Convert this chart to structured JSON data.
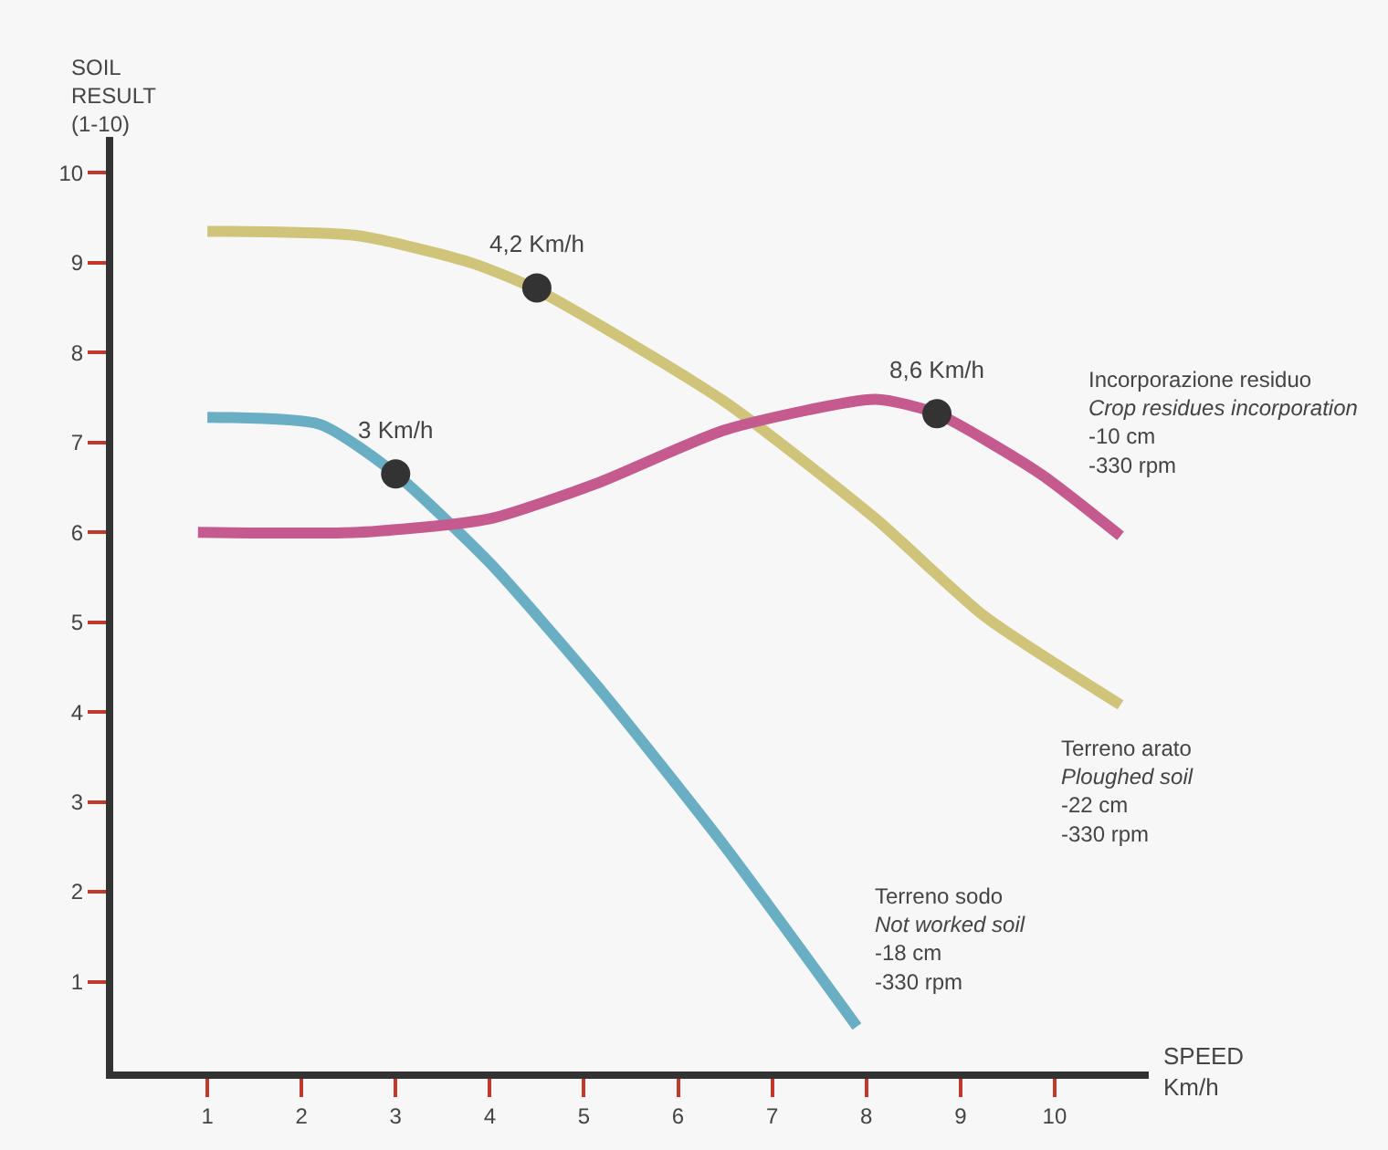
{
  "chart_data": {
    "type": "line",
    "xlabel": "SPEED\nKm/h",
    "ylabel": "SOIL\nRESULT\n(1-10)",
    "xlim": [
      0,
      11
    ],
    "ylim": [
      0,
      10.4
    ],
    "xticks": [
      1,
      2,
      3,
      4,
      5,
      6,
      7,
      8,
      9,
      10
    ],
    "yticks": [
      1,
      2,
      3,
      4,
      5,
      6,
      7,
      8,
      9,
      10
    ],
    "grid": false,
    "legend": false,
    "series": [
      {
        "name": "Terreno arato\nPloughed soil\n-22 cm\n-330 rpm",
        "color": "#cfc47a",
        "marker": "none",
        "x": [
          1,
          2.6,
          3.8,
          4.5,
          6.5,
          8.1,
          9.25,
          10.7
        ],
        "values": [
          9.35,
          9.3,
          9.0,
          8.7,
          7.45,
          6.15,
          5.07,
          4.08
        ]
      },
      {
        "name": "Terreno sodo\nNot worked soil\n-18 cm\n-330 rpm",
        "color": "#6aaec4",
        "marker": "none",
        "x": [
          1,
          2.2,
          3.0,
          4.0,
          5.15,
          6.5,
          7.9
        ],
        "values": [
          7.28,
          7.2,
          6.65,
          5.66,
          4.28,
          2.5,
          0.5
        ]
      },
      {
        "name": "Incorporazione residuo\nCrop residues incorporation\n-10 cm\n-330 rpm",
        "color": "#c45a8e",
        "marker": "none",
        "x": [
          0.9,
          2.6,
          4.0,
          5.15,
          6.5,
          8.1,
          8.75,
          9.85,
          10.7
        ],
        "values": [
          6.0,
          6.0,
          6.15,
          6.55,
          7.14,
          7.48,
          7.32,
          6.65,
          5.96
        ]
      },
      {
        "type": "scatter",
        "color": "#333333",
        "marker": "circle",
        "x": [
          3.0,
          4.5,
          8.75
        ],
        "values": [
          6.65,
          8.72,
          7.32
        ]
      }
    ],
    "annotations": [
      {
        "text": "3 Km/h",
        "x": 3.0,
        "y": 6.65
      },
      {
        "text": "4,2 Km/h",
        "x": 4.5,
        "y": 8.72
      },
      {
        "text": "8,6 Km/h",
        "x": 8.75,
        "y": 7.32
      }
    ]
  }
}
